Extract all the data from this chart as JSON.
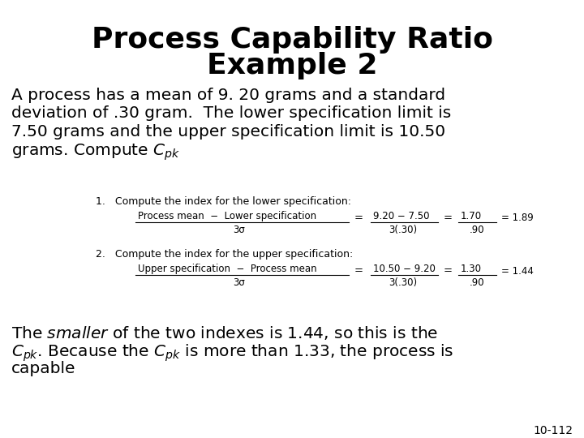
{
  "title_line1": "Process Capability Ratio",
  "title_line2": "Example 2",
  "background_color": "#ffffff",
  "title_fontsize": 26,
  "body_fontsize": 14.5,
  "step_label_fontsize": 9,
  "formula_fontsize": 8.5,
  "conclusion_fontsize": 14.5,
  "footnote": "10-112",
  "footnote_fontsize": 10,
  "body_line1": "A process has a mean of 9. 20 grams and a standard",
  "body_line2": "deviation of .30 gram.  The lower specification limit is",
  "body_line3": "7.50 grams and the upper specification limit is 10.50",
  "body_line4": "grams. Compute ",
  "step1_label": "1.   Compute the index for the lower specification:",
  "step2_label": "2.   Compute the index for the upper specification:",
  "conc_line1": "The ",
  "conc_line2": ". Because the ",
  "conc_line3": " is more than 1.33, the process is",
  "conc_line4": "capable"
}
